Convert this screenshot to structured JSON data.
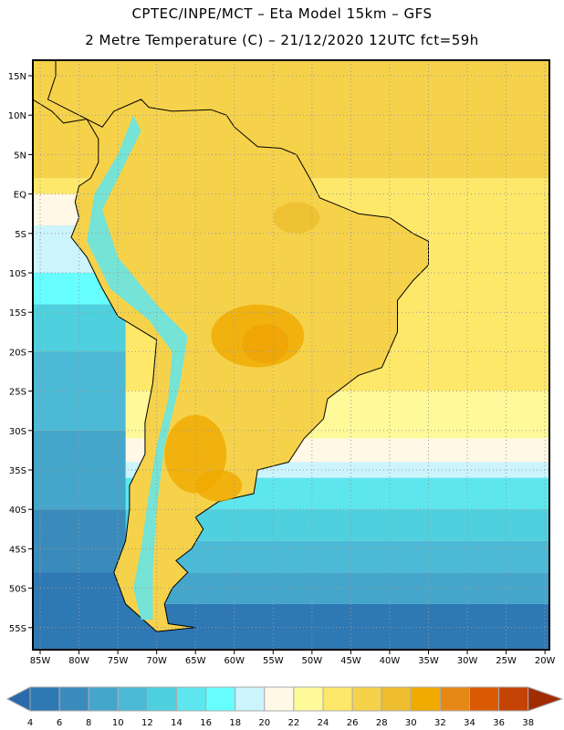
{
  "header": {
    "title": "CPTEC/INPE/MCT –  Eta Model 15km – GFS",
    "subtitle": "2 Metre Temperature (C) – 21/12/2020 12UTC fct=59h"
  },
  "axes": {
    "lat_labels": [
      "15N",
      "10N",
      "5N",
      "EQ",
      "5S",
      "10S",
      "15S",
      "20S",
      "25S",
      "30S",
      "35S",
      "40S",
      "45S",
      "50S",
      "55S"
    ],
    "lon_labels": [
      "85W",
      "80W",
      "75W",
      "70W",
      "65W",
      "60W",
      "55W",
      "50W",
      "45W",
      "40W",
      "35W",
      "30W",
      "25W",
      "20W"
    ]
  },
  "colorbar": {
    "levels": [
      "4",
      "6",
      "8",
      "10",
      "12",
      "14",
      "16",
      "18",
      "20",
      "22",
      "24",
      "26",
      "28",
      "30",
      "32",
      "34",
      "36",
      "38"
    ],
    "colors": [
      "#2a6aaa",
      "#2e78b4",
      "#3a8bbc",
      "#45a6cc",
      "#4cbad6",
      "#4fd0de",
      "#5ee6ee",
      "#66fefe",
      "#ccf4fc",
      "#fff8e6",
      "#fefa9a",
      "#fee86a",
      "#f6d24a",
      "#eebe2e",
      "#f0aa00",
      "#e68816",
      "#da5a04",
      "#c44204",
      "#a22c02"
    ]
  }
}
